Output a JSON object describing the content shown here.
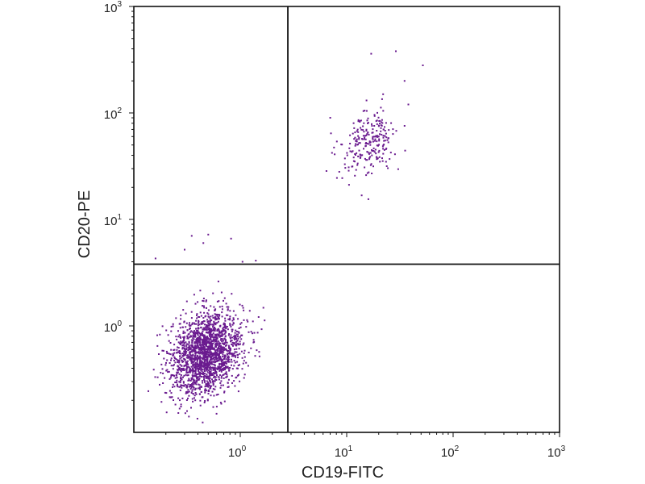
{
  "chart_data": {
    "type": "scatter",
    "title": "",
    "xlabel": "CD19-FITC",
    "ylabel": "CD20-PE",
    "xscale": "log",
    "yscale": "log",
    "xlim": [
      0.1,
      1000
    ],
    "ylim": [
      0.1,
      1000
    ],
    "x_ticks": [
      {
        "value": 1,
        "base": "10",
        "exp": "0"
      },
      {
        "value": 10,
        "base": "10",
        "exp": "1"
      },
      {
        "value": 100,
        "base": "10",
        "exp": "2"
      },
      {
        "value": 1000,
        "base": "10",
        "exp": "3"
      }
    ],
    "y_ticks": [
      {
        "value": 1,
        "base": "10",
        "exp": "0"
      },
      {
        "value": 10,
        "base": "10",
        "exp": "1"
      },
      {
        "value": 100,
        "base": "10",
        "exp": "2"
      },
      {
        "value": 1000,
        "base": "10",
        "exp": "3"
      }
    ],
    "quadrant_gates": {
      "x": 2.8,
      "y": 3.8
    },
    "grid": false,
    "legend": "none",
    "point_color": "#6a1b8f",
    "populations": [
      {
        "center": [
          0.48,
          0.55
        ],
        "spread_log10": [
          0.17,
          0.2
        ],
        "count": 1900
      },
      {
        "center": [
          16,
          52
        ],
        "spread_log10": [
          0.13,
          0.15
        ],
        "count": 240
      }
    ],
    "outliers": [
      [
        0.35,
        7.0
      ],
      [
        0.5,
        7.2
      ],
      [
        0.82,
        6.6
      ],
      [
        0.45,
        6.0
      ],
      [
        1.4,
        4.1
      ],
      [
        0.16,
        4.3
      ],
      [
        1.05,
        4.0
      ],
      [
        0.3,
        5.2
      ],
      [
        17,
        360
      ],
      [
        29,
        380
      ],
      [
        52,
        280
      ],
      [
        35,
        200
      ],
      [
        22,
        150
      ],
      [
        16,
        15.5
      ],
      [
        7,
        90
      ],
      [
        38,
        120
      ]
    ]
  }
}
